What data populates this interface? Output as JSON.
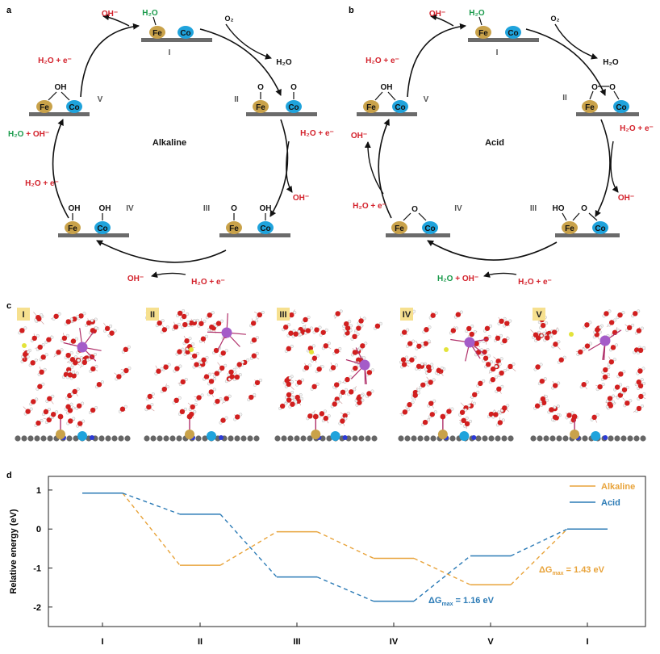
{
  "panels": {
    "a": "a",
    "b": "b",
    "c": "c",
    "d": "d"
  },
  "colors": {
    "surface": "#6b6b6b",
    "fe": "#c9a24a",
    "co": "#1fa3dc",
    "red": "#d3212b",
    "green": "#1a9a4b",
    "alkaline": "#e8a33a",
    "acid": "#2c7bb6",
    "oxygen": "#d11f1f",
    "metal": "#a45cc8",
    "label_bg": "#f6e08f"
  },
  "panel_a": {
    "center": "Alkaline",
    "steps": [
      "I",
      "II",
      "III",
      "IV",
      "V"
    ],
    "metals": {
      "fe": "Fe",
      "co": "Co"
    },
    "adsorbates": {
      "water": "H₂O",
      "o": "O",
      "oh": "OH",
      "o2": "O₂"
    },
    "reagents": {
      "h2o_e": "H₂O + e⁻",
      "oh_minus": "OH⁻",
      "h2o": "H₂O",
      "h2o_green": "H₂O",
      "plus": " + ",
      "oh_minus_red": "OH⁻"
    }
  },
  "panel_b": {
    "center": "Acid",
    "steps": [
      "I",
      "II",
      "III",
      "IV",
      "V"
    ],
    "metals": {
      "fe": "Fe",
      "co": "Co"
    },
    "adsorbates": {
      "water": "H₂O",
      "o": "O",
      "oh": "OH",
      "ho": "HO",
      "o2": "O₂"
    },
    "reagents": {
      "h2o_e": "H₂O + e⁻",
      "oh_minus": "OH⁻",
      "h2o": "H₂O",
      "h2o_green": "H₂O",
      "plus": " + ",
      "oh_minus_red": "OH⁻"
    }
  },
  "panel_c": {
    "snapshots": [
      "I",
      "II",
      "III",
      "IV",
      "V"
    ]
  },
  "chart_data": {
    "type": "line",
    "ylabel": "Relative energy (eV)",
    "categories": [
      "I",
      "II",
      "III",
      "IV",
      "V",
      "I"
    ],
    "yticks": [
      1,
      0,
      -1,
      -2
    ],
    "ytick_labels": [
      "1",
      "0",
      "-1",
      "-2"
    ],
    "ylim": [
      -2.5,
      1.35
    ],
    "legend_position": "top-right",
    "series": [
      {
        "name": "Alkaline",
        "color": "#e8a33a",
        "values": [
          0.92,
          -0.93,
          -0.07,
          -0.75,
          -1.43,
          0.0
        ]
      },
      {
        "name": "Acid",
        "color": "#2c7bb6",
        "values": [
          0.92,
          0.38,
          -1.23,
          -1.85,
          -0.69,
          0.0
        ]
      }
    ],
    "annotations": [
      {
        "series": "Alkaline",
        "text": "ΔG",
        "sub": "max",
        "value": " = 1.43 eV"
      },
      {
        "series": "Acid",
        "text": "ΔG",
        "sub": "max",
        "value": " = 1.16 eV"
      }
    ]
  }
}
